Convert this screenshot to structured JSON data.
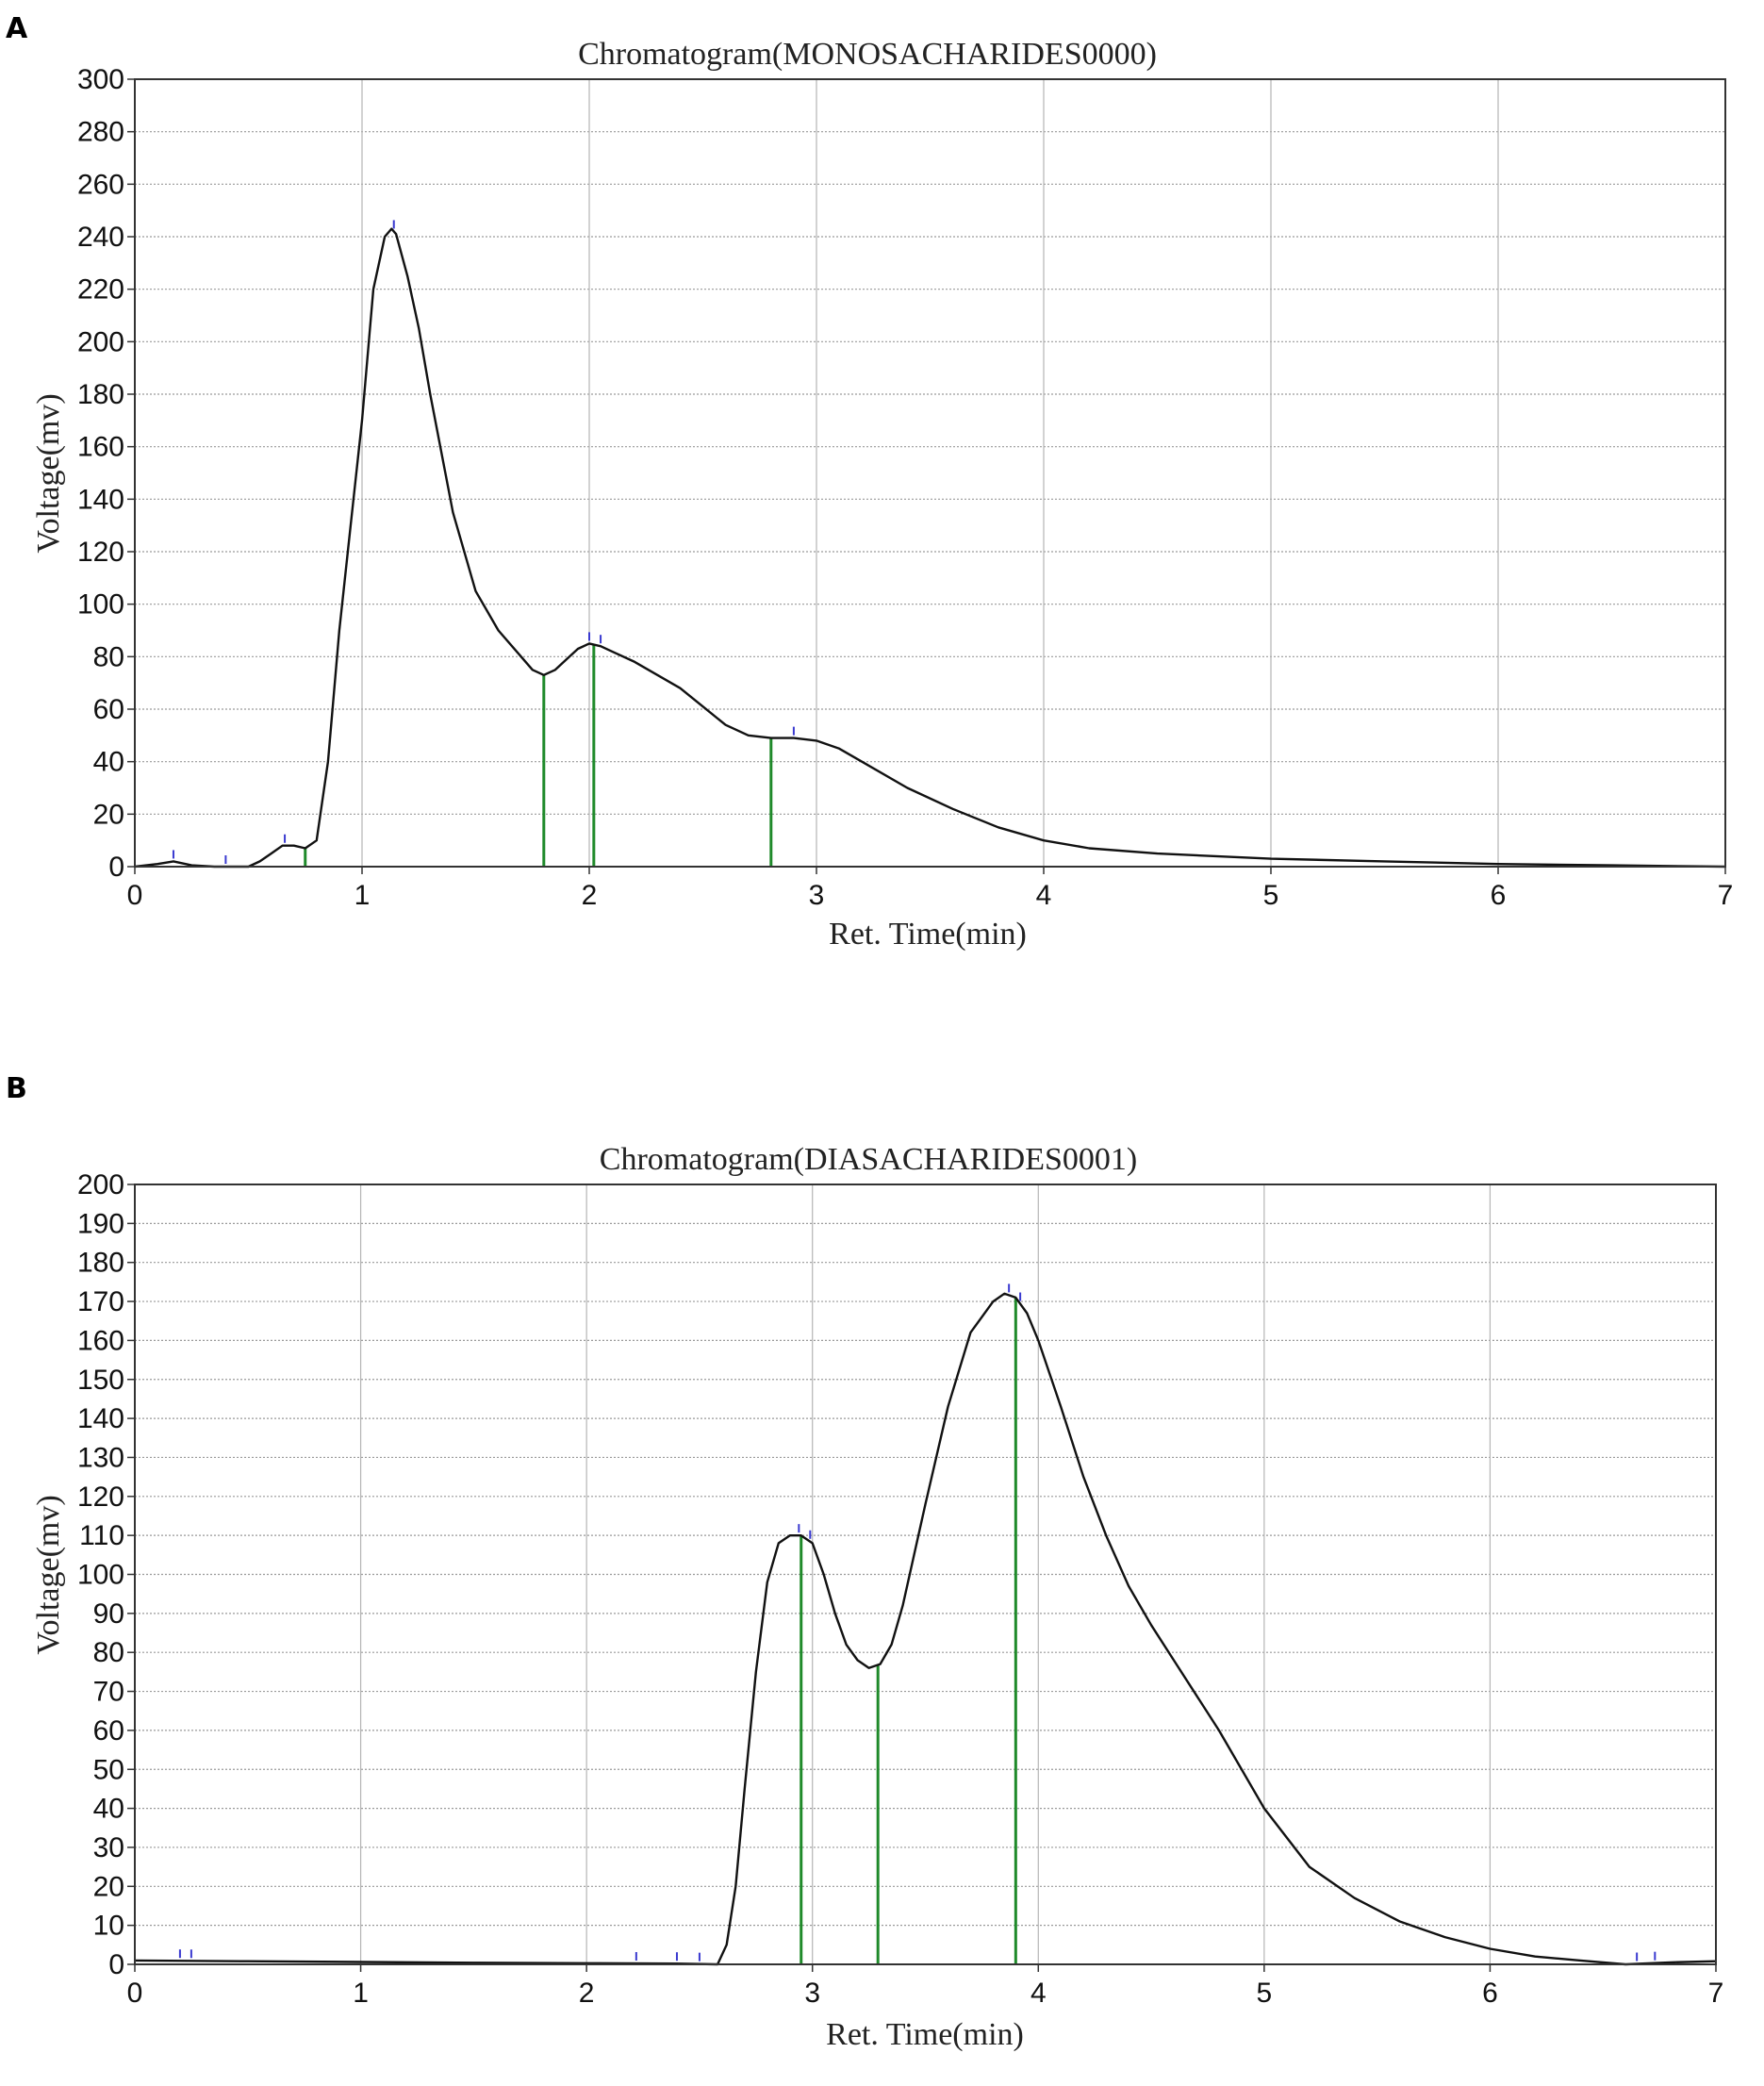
{
  "panels": [
    {
      "letter": "A",
      "title": "Chromatogram(MONOSACHARIDES0000)",
      "xlabel": "Ret. Time(min)",
      "ylabel": "Voltage(mv)"
    },
    {
      "letter": "B",
      "title": "Chromatogram(DIASACHARIDES0001)",
      "xlabel": "Ret. Time(min)",
      "ylabel": "Voltage(mv)"
    }
  ],
  "chart_data": [
    {
      "type": "line",
      "title": "Chromatogram(MONOSACHARIDES0000)",
      "xlabel": "Ret. Time(min)",
      "ylabel": "Voltage(mv)",
      "xlim": [
        0,
        7
      ],
      "ylim": [
        0,
        300
      ],
      "xticks": [
        0,
        1,
        2,
        3,
        4,
        5,
        6,
        7
      ],
      "yticks": [
        0,
        20,
        40,
        60,
        80,
        100,
        120,
        140,
        160,
        180,
        200,
        220,
        240,
        260,
        280,
        300
      ],
      "grid": true,
      "series": [
        {
          "x": [
            0,
            0.1,
            0.17,
            0.25,
            0.35,
            0.5,
            0.55,
            0.6,
            0.65,
            0.7,
            0.75,
            0.8,
            0.85,
            0.9,
            0.95,
            1.0,
            1.05,
            1.1,
            1.13,
            1.15,
            1.2,
            1.25,
            1.3,
            1.4,
            1.5,
            1.6,
            1.7,
            1.75,
            1.8,
            1.85,
            1.9,
            1.95,
            2.0,
            2.05,
            2.1,
            2.2,
            2.3,
            2.4,
            2.5,
            2.6,
            2.7,
            2.8,
            2.9,
            3.0,
            3.1,
            3.2,
            3.4,
            3.6,
            3.8,
            4.0,
            4.2,
            4.5,
            5.0,
            5.5,
            6.0,
            6.5,
            7.0
          ],
          "y": [
            0,
            1,
            2,
            0.5,
            0,
            0,
            2,
            5,
            8,
            8,
            7,
            10,
            40,
            90,
            130,
            170,
            220,
            240,
            243,
            241,
            225,
            205,
            180,
            135,
            105,
            90,
            80,
            75,
            73,
            75,
            79,
            83,
            85,
            84,
            82,
            78,
            73,
            68,
            61,
            54,
            50,
            49,
            49,
            48,
            45,
            40,
            30,
            22,
            15,
            10,
            7,
            5,
            3,
            2,
            1,
            0.5,
            0
          ]
        }
      ],
      "integration_marks": [
        0.75,
        1.8,
        2.02,
        2.8
      ],
      "peak_marks": [
        0.17,
        0.4,
        0.66,
        1.14,
        2.0,
        2.05,
        2.9
      ]
    },
    {
      "type": "line",
      "title": "Chromatogram(DIASACHARIDES0001)",
      "xlabel": "Ret. Time(min)",
      "ylabel": "Voltage(mv)",
      "xlim": [
        0,
        7
      ],
      "ylim": [
        0,
        200
      ],
      "xticks": [
        0,
        1,
        2,
        3,
        4,
        5,
        6,
        7
      ],
      "yticks": [
        0,
        10,
        20,
        30,
        40,
        50,
        60,
        70,
        80,
        90,
        100,
        110,
        120,
        130,
        140,
        150,
        160,
        170,
        180,
        190,
        200
      ],
      "grid": true,
      "series": [
        {
          "x": [
            0,
            0.5,
            1.0,
            1.5,
            2.0,
            2.4,
            2.58,
            2.62,
            2.66,
            2.7,
            2.75,
            2.8,
            2.85,
            2.9,
            2.95,
            3.0,
            3.05,
            3.1,
            3.15,
            3.2,
            3.25,
            3.3,
            3.35,
            3.4,
            3.5,
            3.6,
            3.7,
            3.8,
            3.85,
            3.9,
            3.95,
            4.0,
            4.1,
            4.2,
            4.3,
            4.4,
            4.5,
            4.6,
            4.8,
            5.0,
            5.2,
            5.4,
            5.6,
            5.8,
            6.0,
            6.2,
            6.4,
            6.6,
            6.8,
            7.0
          ],
          "y": [
            1,
            0.8,
            0.6,
            0.4,
            0.3,
            0.2,
            0,
            5,
            20,
            45,
            75,
            98,
            108,
            110,
            110,
            108,
            100,
            90,
            82,
            78,
            76,
            77,
            82,
            92,
            118,
            143,
            162,
            170,
            172,
            171,
            167,
            160,
            143,
            125,
            110,
            97,
            87,
            78,
            60,
            40,
            25,
            17,
            11,
            7,
            4,
            2,
            1,
            0,
            0.5,
            0.8
          ]
        }
      ],
      "integration_marks": [
        2.95,
        3.29,
        3.9
      ],
      "peak_marks": [
        0.2,
        0.25,
        2.22,
        2.4,
        2.5,
        2.94,
        2.99,
        3.87,
        3.92,
        6.65,
        6.73
      ]
    }
  ]
}
